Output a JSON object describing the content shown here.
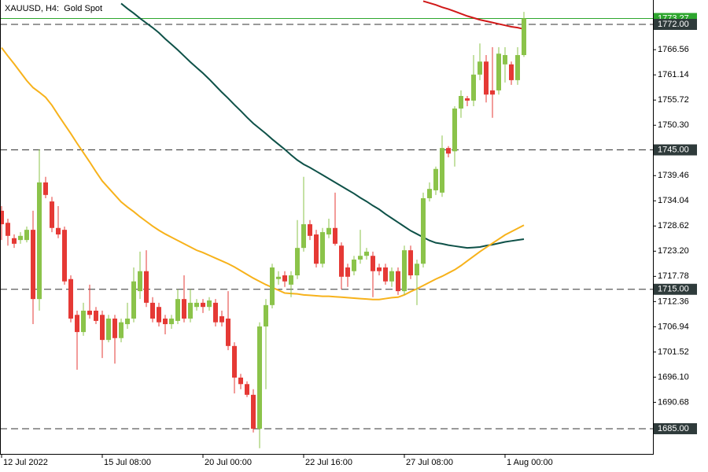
{
  "chart_data": {
    "type": "candlestick",
    "title": "XAUUSD, H4:  Gold Spot",
    "categories": [
      "12 Jul 2022",
      null,
      null,
      null,
      null,
      null,
      null,
      null,
      null,
      null,
      null,
      null,
      null,
      null,
      null,
      null,
      "15 Jul 08:00",
      null,
      null,
      null,
      null,
      null,
      null,
      null,
      null,
      null,
      null,
      null,
      null,
      null,
      null,
      null,
      "20 Jul 00:00",
      null,
      null,
      null,
      null,
      null,
      null,
      null,
      null,
      null,
      null,
      null,
      null,
      null,
      null,
      null,
      "22 Jul 16:00",
      null,
      null,
      null,
      null,
      null,
      null,
      null,
      null,
      null,
      null,
      null,
      null,
      null,
      null,
      null,
      "27 Jul 08:00",
      null,
      null,
      null,
      null,
      null,
      null,
      null,
      null,
      null,
      null,
      null,
      null,
      null,
      null,
      null,
      "1 Aug 00:00",
      null,
      null,
      null
    ],
    "open": [
      1731.9,
      1729.3,
      1726.0,
      1725.6,
      1725.6,
      1727.8,
      1712.9,
      1738.0,
      1733.9,
      1728.2,
      1727.8,
      1717.2,
      1709.5,
      1705.8,
      1710.4,
      1710.4,
      1709.5,
      1704.1,
      1708.7,
      1704.5,
      1707.5,
      1708.7,
      1714.6,
      1718.9,
      1712.1,
      1711.2,
      1708.7,
      1707.5,
      1708.2,
      1712.9,
      1708.7,
      1711.2,
      1712.1,
      1711.2,
      1712.1,
      1709.2,
      1708.7,
      1702.8,
      1696.0,
      1694.6,
      1692.3,
      1685.0,
      1707.0,
      1711.6,
      1717.2,
      1718.0,
      1716.0,
      1718.0,
      1723.9,
      1729.0,
      1726.8,
      1720.5,
      1726.8,
      1728.2,
      1724.4,
      1719.7,
      1718.9,
      1721.4,
      1722.2,
      1722.2,
      1719.7,
      1719.7,
      1716.7,
      1718.9,
      1714.6,
      1723.4,
      1718.0,
      1720.5,
      1734.6,
      1736.3,
      1735.8,
      1745.4,
      1744.7,
      1753.9,
      1756.1,
      1755.6,
      1761.2,
      1764.0,
      1757.8,
      1757.8,
      1763.4,
      1763.4,
      1760.0,
      1765.4
    ],
    "high": [
      1732.9,
      1730.2,
      1726.8,
      1727.3,
      1728.5,
      1731.9,
      1745.1,
      1739.2,
      1734.9,
      1732.9,
      1728.5,
      1718.0,
      1710.4,
      1712.1,
      1716.0,
      1711.2,
      1710.4,
      1709.5,
      1709.5,
      1708.7,
      1712.1,
      1719.7,
      1723.1,
      1723.4,
      1713.3,
      1712.1,
      1709.5,
      1709.5,
      1715.0,
      1718.0,
      1715.0,
      1712.9,
      1712.9,
      1713.3,
      1712.9,
      1710.4,
      1714.6,
      1703.6,
      1696.8,
      1695.2,
      1693.5,
      1707.9,
      1712.9,
      1720.5,
      1718.9,
      1718.9,
      1718.9,
      1729.9,
      1739.2,
      1729.9,
      1727.8,
      1728.2,
      1730.2,
      1735.8,
      1725.1,
      1720.5,
      1722.2,
      1727.8,
      1723.9,
      1723.1,
      1720.5,
      1720.5,
      1719.7,
      1719.7,
      1724.4,
      1724.4,
      1721.4,
      1735.8,
      1738.0,
      1741.4,
      1748.1,
      1745.8,
      1754.4,
      1757.8,
      1756.6,
      1765.4,
      1767.9,
      1765.4,
      1767.1,
      1767.1,
      1767.1,
      1764.0,
      1767.1,
      1774.7
    ],
    "low": [
      1725.6,
      1724.4,
      1723.9,
      1724.8,
      1725.1,
      1707.5,
      1710.4,
      1734.6,
      1727.3,
      1726.0,
      1716.0,
      1707.9,
      1697.7,
      1705.0,
      1708.7,
      1707.5,
      1700.2,
      1703.6,
      1699.0,
      1703.6,
      1706.5,
      1707.9,
      1712.9,
      1711.2,
      1707.9,
      1707.0,
      1705.3,
      1706.5,
      1707.5,
      1707.9,
      1707.9,
      1710.4,
      1709.9,
      1710.4,
      1707.0,
      1707.0,
      1701.9,
      1692.6,
      1693.5,
      1691.8,
      1684.2,
      1680.8,
      1693.5,
      1710.9,
      1716.0,
      1715.5,
      1713.3,
      1717.2,
      1723.1,
      1725.6,
      1719.7,
      1719.7,
      1726.0,
      1724.4,
      1715.0,
      1715.5,
      1718.0,
      1720.5,
      1721.4,
      1713.3,
      1718.0,
      1716.0,
      1715.5,
      1713.8,
      1713.8,
      1717.2,
      1711.6,
      1719.7,
      1733.9,
      1735.3,
      1734.9,
      1743.4,
      1741.4,
      1751.9,
      1754.4,
      1754.4,
      1760.0,
      1755.2,
      1751.9,
      1756.9,
      1759.5,
      1759.0,
      1759.0,
      1765.0
    ],
    "close": [
      1729.0,
      1726.5,
      1724.8,
      1726.5,
      1727.8,
      1712.9,
      1738.0,
      1735.3,
      1728.2,
      1726.8,
      1716.7,
      1708.7,
      1705.8,
      1710.4,
      1709.5,
      1708.2,
      1704.1,
      1708.7,
      1704.5,
      1707.9,
      1708.7,
      1716.7,
      1718.9,
      1712.1,
      1708.7,
      1707.9,
      1707.5,
      1708.7,
      1712.9,
      1708.7,
      1712.1,
      1712.1,
      1711.2,
      1712.6,
      1707.9,
      1707.9,
      1702.8,
      1696.0,
      1694.6,
      1692.3,
      1685.0,
      1707.0,
      1711.6,
      1719.7,
      1717.7,
      1716.7,
      1718.0,
      1723.9,
      1729.0,
      1726.5,
      1720.5,
      1727.3,
      1728.2,
      1724.8,
      1717.7,
      1717.7,
      1721.4,
      1722.2,
      1723.1,
      1718.9,
      1718.9,
      1716.7,
      1718.9,
      1714.6,
      1723.4,
      1718.0,
      1720.5,
      1734.6,
      1736.6,
      1740.9,
      1745.4,
      1744.2,
      1753.9,
      1756.6,
      1755.6,
      1761.2,
      1764.0,
      1756.9,
      1756.9,
      1765.7,
      1765.4,
      1760.0,
      1765.4,
      1773.27
    ],
    "up_color": "#8bc34a",
    "down_color": "#e53935",
    "lines": [
      {
        "color": "#0e5148",
        "values": [
          null,
          null,
          null,
          null,
          null,
          null,
          null,
          null,
          null,
          null,
          null,
          null,
          null,
          null,
          null,
          null,
          null,
          null,
          null,
          1776.5,
          1775.4,
          1774.4,
          1773.3,
          1772.3,
          1771.3,
          1770.2,
          1768.9,
          1767.7,
          1766.5,
          1765.2,
          1763.9,
          1762.7,
          1761.5,
          1760.2,
          1758.8,
          1757.4,
          1756.1,
          1754.7,
          1753.4,
          1752.0,
          1750.7,
          1749.6,
          1748.5,
          1747.3,
          1746.2,
          1745.1,
          1743.9,
          1742.8,
          1741.9,
          1741.2,
          1740.4,
          1739.6,
          1738.8,
          1738.0,
          1737.2,
          1736.4,
          1735.6,
          1734.7,
          1733.9,
          1733.0,
          1732.2,
          1731.2,
          1730.3,
          1729.4,
          1728.5,
          1727.6,
          1726.9,
          1726.2,
          1725.5,
          1725.0,
          1724.8,
          1724.5,
          1724.3,
          1724.1,
          1723.9,
          1724.0,
          1724.1,
          1724.4,
          1724.6,
          1724.9,
          1725.2,
          1725.4,
          1725.6,
          1725.8
        ]
      },
      {
        "color": "#f7b21b",
        "values": [
          1767.0,
          1765.2,
          1763.5,
          1761.7,
          1759.9,
          1758.4,
          1757.4,
          1756.3,
          1754.6,
          1752.5,
          1750.5,
          1748.5,
          1746.4,
          1744.4,
          1742.4,
          1740.3,
          1738.3,
          1736.8,
          1735.3,
          1733.8,
          1732.7,
          1731.7,
          1730.6,
          1729.6,
          1728.6,
          1727.7,
          1726.9,
          1726.2,
          1725.5,
          1724.8,
          1724.1,
          1723.4,
          1722.9,
          1722.3,
          1721.7,
          1721.1,
          1720.5,
          1719.8,
          1719.0,
          1718.2,
          1717.4,
          1716.7,
          1716.0,
          1715.4,
          1714.8,
          1714.2,
          1714.1,
          1714.0,
          1713.8,
          1713.7,
          1713.6,
          1713.5,
          1713.5,
          1713.4,
          1713.3,
          1713.2,
          1713.1,
          1713.0,
          1712.9,
          1712.8,
          1712.8,
          1713.0,
          1713.2,
          1713.3,
          1713.8,
          1714.5,
          1715.1,
          1715.8,
          1716.5,
          1717.2,
          1717.8,
          1718.5,
          1719.2,
          1720.1,
          1721.1,
          1722.1,
          1723.1,
          1724.0,
          1724.9,
          1725.8,
          1726.7,
          1727.4,
          1728.1,
          1728.8
        ]
      },
      {
        "color": "#d01818",
        "values": [
          null,
          null,
          null,
          null,
          null,
          null,
          null,
          null,
          null,
          null,
          null,
          null,
          null,
          null,
          null,
          null,
          null,
          null,
          null,
          null,
          null,
          null,
          null,
          null,
          null,
          null,
          null,
          null,
          null,
          null,
          null,
          null,
          null,
          null,
          null,
          null,
          null,
          null,
          null,
          null,
          null,
          null,
          null,
          null,
          null,
          null,
          null,
          null,
          null,
          null,
          null,
          null,
          null,
          null,
          null,
          null,
          null,
          null,
          null,
          null,
          null,
          null,
          null,
          null,
          null,
          null,
          null,
          1777.0,
          1776.6,
          1776.2,
          1775.7,
          1775.3,
          1774.8,
          1774.3,
          1773.8,
          1773.4,
          1773.0,
          1772.7,
          1772.4,
          1772.1,
          1771.8,
          1771.5,
          1771.3,
          1771.0
        ]
      }
    ],
    "ylim": [
      1679.58,
      1777.25
    ],
    "yticks": [
      {
        "value": 1766.56,
        "label": "1766.56"
      },
      {
        "value": 1761.14,
        "label": "1761.14"
      },
      {
        "value": 1755.72,
        "label": "1755.72"
      },
      {
        "value": 1750.3,
        "label": "1750.30"
      },
      {
        "value": 1739.46,
        "label": "1739.46"
      },
      {
        "value": 1734.04,
        "label": "1734.04"
      },
      {
        "value": 1728.62,
        "label": "1728.62"
      },
      {
        "value": 1723.2,
        "label": "1723.20"
      },
      {
        "value": 1717.78,
        "label": "1717.78"
      },
      {
        "value": 1712.36,
        "label": "1712.36"
      },
      {
        "value": 1706.94,
        "label": "1706.94"
      },
      {
        "value": 1701.52,
        "label": "1701.52"
      },
      {
        "value": 1696.1,
        "label": "1696.10"
      },
      {
        "value": 1690.68,
        "label": "1690.68"
      }
    ],
    "current_price": {
      "value": 1773.27,
      "label": "1773.27",
      "color": "#2ea62e"
    },
    "levels": [
      {
        "value": 1772,
        "label": "1772.00"
      },
      {
        "value": 1745,
        "label": "1745.00"
      },
      {
        "value": 1715,
        "label": "1715.00"
      },
      {
        "value": 1685,
        "label": "1685.00"
      }
    ],
    "level_color": "#2f3b3b"
  }
}
